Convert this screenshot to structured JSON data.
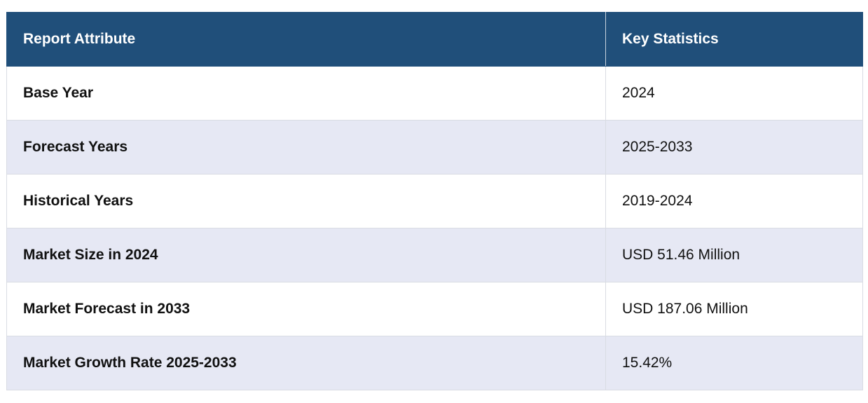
{
  "table": {
    "headers": [
      "Report Attribute",
      "Key Statistics"
    ],
    "rows": [
      {
        "attribute": "Base Year",
        "value": "2024"
      },
      {
        "attribute": "Forecast Years",
        "value": "2025-2033"
      },
      {
        "attribute": "Historical Years",
        "value": "2019-2024"
      },
      {
        "attribute": "Market Size in 2024",
        "value": "USD 51.46 Million"
      },
      {
        "attribute": "Market Forecast in 2033",
        "value": "USD 187.06 Million"
      },
      {
        "attribute": "Market Growth Rate 2025-2033",
        "value": "15.42%"
      }
    ]
  },
  "colors": {
    "header_bg": "#204f7a",
    "header_text": "#ffffff",
    "row_alt_bg": "#e6e8f4",
    "row_bg": "#ffffff",
    "border": "#d9dce3"
  }
}
